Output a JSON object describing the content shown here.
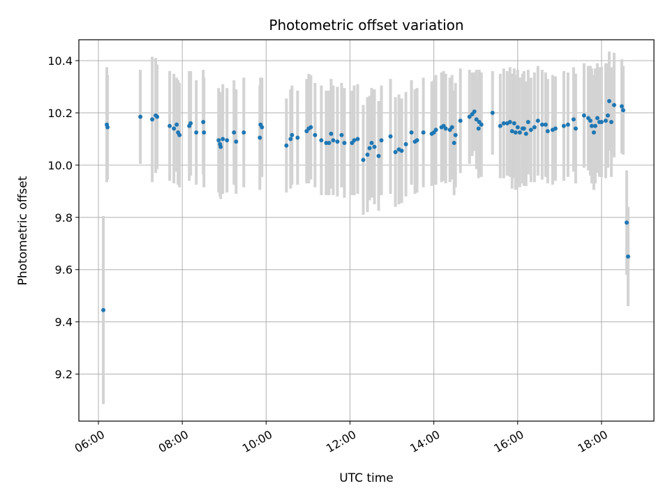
{
  "chart_data": {
    "type": "scatter",
    "title": "Photometric offset variation",
    "xlabel": "UTC time",
    "ylabel": "Photometric offset",
    "x_tick_labels": [
      "06:00",
      "08:00",
      "10:00",
      "12:00",
      "14:00",
      "16:00",
      "18:00"
    ],
    "y_tick_labels": [
      "9.2",
      "9.4",
      "9.6",
      "9.8",
      "10.0",
      "10.2",
      "10.4"
    ],
    "xlim": [
      "05:32",
      "19:15"
    ],
    "ylim": [
      9.02,
      10.48
    ],
    "grid": true,
    "colors": {
      "point": "#1f77b4",
      "errorbar": "#d3d3d3",
      "grid": "#b0b0b0"
    },
    "series": [
      {
        "points": [
          [
            "06:07",
            9.445,
            0.36
          ],
          [
            "06:12",
            10.155,
            0.22
          ],
          [
            "06:13",
            10.145,
            0.2
          ],
          [
            "07:00",
            10.185,
            0.18
          ],
          [
            "07:17",
            10.175,
            0.24
          ],
          [
            "07:22",
            10.19,
            0.22
          ],
          [
            "07:24",
            10.185,
            0.2
          ],
          [
            "07:42",
            10.15,
            0.21
          ],
          [
            "07:48",
            10.14,
            0.21
          ],
          [
            "07:52",
            10.155,
            0.18
          ],
          [
            "07:54",
            10.125,
            0.2
          ],
          [
            "07:56",
            10.115,
            0.2
          ],
          [
            "08:10",
            10.15,
            0.21
          ],
          [
            "08:12",
            10.16,
            0.2
          ],
          [
            "08:20",
            10.125,
            0.2
          ],
          [
            "08:30",
            10.165,
            0.2
          ],
          [
            "08:31",
            10.125,
            0.21
          ],
          [
            "08:52",
            10.095,
            0.2
          ],
          [
            "08:54",
            10.08,
            0.2
          ],
          [
            "08:55",
            10.07,
            0.2
          ],
          [
            "08:58",
            10.1,
            0.21
          ],
          [
            "09:04",
            10.095,
            0.2
          ],
          [
            "09:14",
            10.125,
            0.2
          ],
          [
            "09:17",
            10.09,
            0.2
          ],
          [
            "09:28",
            10.125,
            0.21
          ],
          [
            "09:51",
            10.105,
            0.2
          ],
          [
            "09:52",
            10.155,
            0.18
          ],
          [
            "09:54",
            10.145,
            0.19
          ],
          [
            "10:29",
            10.075,
            0.18
          ],
          [
            "10:35",
            10.1,
            0.19
          ],
          [
            "10:37",
            10.115,
            0.19
          ],
          [
            "10:45",
            10.105,
            0.18
          ],
          [
            "10:58",
            10.13,
            0.2
          ],
          [
            "11:01",
            10.14,
            0.21
          ],
          [
            "11:04",
            10.145,
            0.2
          ],
          [
            "11:10",
            10.115,
            0.2
          ],
          [
            "11:19",
            10.095,
            0.21
          ],
          [
            "11:26",
            10.085,
            0.2
          ],
          [
            "11:30",
            10.085,
            0.2
          ],
          [
            "11:33",
            10.12,
            0.21
          ],
          [
            "11:36",
            10.095,
            0.21
          ],
          [
            "11:42",
            10.09,
            0.21
          ],
          [
            "11:48",
            10.115,
            0.2
          ],
          [
            "11:52",
            10.085,
            0.21
          ],
          [
            "12:03",
            10.085,
            0.2
          ],
          [
            "12:06",
            10.095,
            0.21
          ],
          [
            "12:11",
            10.1,
            0.21
          ],
          [
            "12:19",
            10.02,
            0.21
          ],
          [
            "12:25",
            10.04,
            0.22
          ],
          [
            "12:28",
            10.065,
            0.2
          ],
          [
            "12:31",
            10.085,
            0.21
          ],
          [
            "12:35",
            10.07,
            0.22
          ],
          [
            "12:41",
            10.035,
            0.21
          ],
          [
            "12:45",
            10.095,
            0.21
          ],
          [
            "12:58",
            10.11,
            0.22
          ],
          [
            "13:05",
            10.05,
            0.21
          ],
          [
            "13:10",
            10.06,
            0.21
          ],
          [
            "13:14",
            10.055,
            0.2
          ],
          [
            "13:20",
            10.08,
            0.2
          ],
          [
            "13:28",
            10.125,
            0.2
          ],
          [
            "13:33",
            10.09,
            0.2
          ],
          [
            "13:36",
            10.095,
            0.2
          ],
          [
            "13:45",
            10.125,
            0.21
          ],
          [
            "13:57",
            10.12,
            0.2
          ],
          [
            "14:00",
            10.125,
            0.2
          ],
          [
            "14:03",
            10.135,
            0.21
          ],
          [
            "14:11",
            10.145,
            0.21
          ],
          [
            "14:14",
            10.15,
            0.21
          ],
          [
            "14:17",
            10.14,
            0.21
          ],
          [
            "14:23",
            10.135,
            0.2
          ],
          [
            "14:26",
            10.145,
            0.2
          ],
          [
            "14:29",
            10.085,
            0.2
          ],
          [
            "14:31",
            10.115,
            0.2
          ],
          [
            "14:38",
            10.17,
            0.2
          ],
          [
            "14:51",
            10.185,
            0.18
          ],
          [
            "14:55",
            10.195,
            0.16
          ],
          [
            "14:58",
            10.205,
            0.15
          ],
          [
            "15:01",
            10.175,
            0.19
          ],
          [
            "15:04",
            10.14,
            0.19
          ],
          [
            "15:05",
            10.165,
            0.2
          ],
          [
            "15:08",
            10.155,
            0.2
          ],
          [
            "15:24",
            10.2,
            0.16
          ],
          [
            "15:35",
            10.15,
            0.2
          ],
          [
            "15:40",
            10.16,
            0.21
          ],
          [
            "15:45",
            10.16,
            0.2
          ],
          [
            "15:49",
            10.165,
            0.21
          ],
          [
            "15:52",
            10.13,
            0.22
          ],
          [
            "15:55",
            10.16,
            0.21
          ],
          [
            "15:57",
            10.125,
            0.22
          ],
          [
            "16:00",
            10.145,
            0.22
          ],
          [
            "16:03",
            10.125,
            0.21
          ],
          [
            "16:07",
            10.14,
            0.21
          ],
          [
            "16:09",
            10.14,
            0.22
          ],
          [
            "16:12",
            10.12,
            0.2
          ],
          [
            "16:15",
            10.165,
            0.2
          ],
          [
            "16:19",
            10.135,
            0.2
          ],
          [
            "16:24",
            10.145,
            0.21
          ],
          [
            "16:29",
            10.17,
            0.21
          ],
          [
            "16:35",
            10.155,
            0.21
          ],
          [
            "16:40",
            10.155,
            0.2
          ],
          [
            "16:43",
            10.13,
            0.2
          ],
          [
            "16:50",
            10.135,
            0.21
          ],
          [
            "16:54",
            10.14,
            0.2
          ],
          [
            "17:06",
            10.15,
            0.21
          ],
          [
            "17:12",
            10.155,
            0.2
          ],
          [
            "17:20",
            10.175,
            0.2
          ],
          [
            "17:23",
            10.14,
            0.21
          ],
          [
            "17:35",
            10.19,
            0.2
          ],
          [
            "17:41",
            10.18,
            0.2
          ],
          [
            "17:44",
            10.17,
            0.21
          ],
          [
            "17:46",
            10.15,
            0.22
          ],
          [
            "17:49",
            10.125,
            0.22
          ],
          [
            "17:51",
            10.15,
            0.22
          ],
          [
            "17:54",
            10.18,
            0.21
          ],
          [
            "17:57",
            10.165,
            0.21
          ],
          [
            "18:00",
            10.165,
            0.21
          ],
          [
            "18:06",
            10.17,
            0.22
          ],
          [
            "18:09",
            10.19,
            0.2
          ],
          [
            "18:11",
            10.245,
            0.19
          ],
          [
            "18:14",
            10.165,
            0.21
          ],
          [
            "18:18",
            10.23,
            0.2
          ],
          [
            "18:29",
            10.225,
            0.18
          ],
          [
            "18:31",
            10.21,
            0.17
          ],
          [
            "18:36",
            9.78,
            0.2
          ],
          [
            "18:38",
            9.65,
            0.19
          ]
        ]
      }
    ]
  }
}
